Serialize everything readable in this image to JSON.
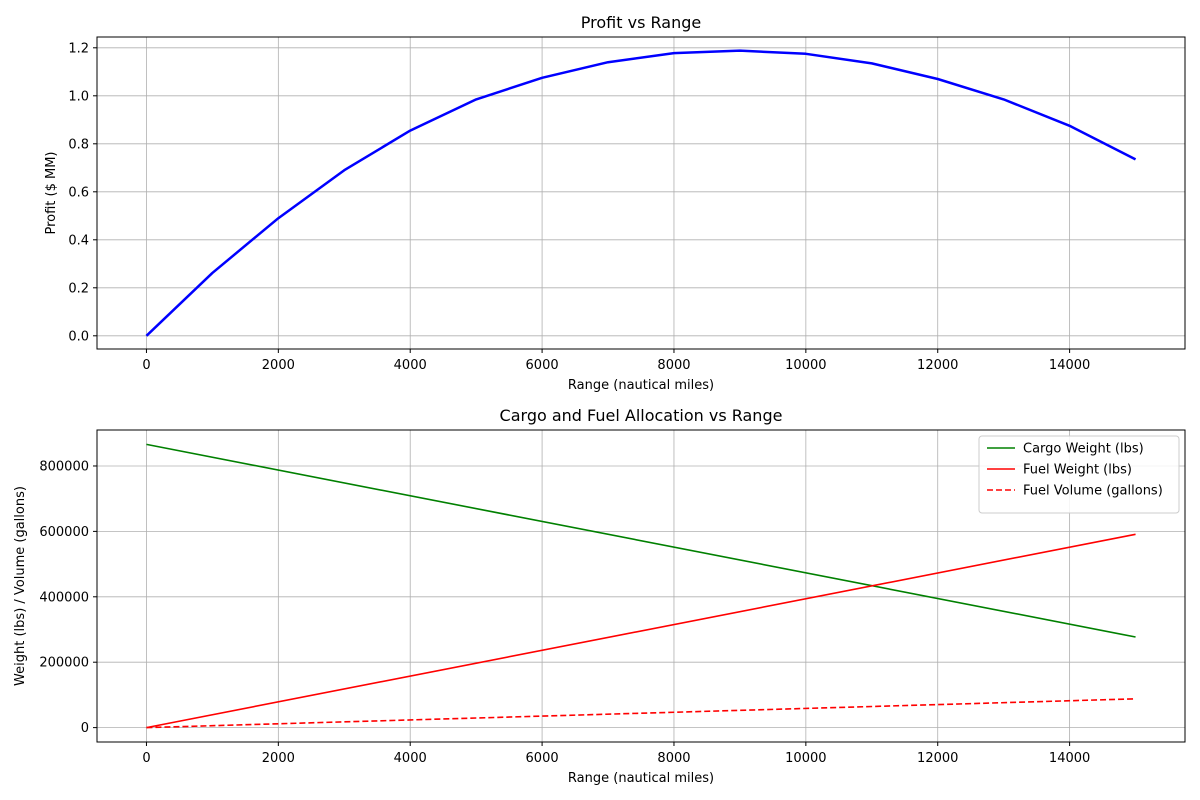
{
  "chart_data": [
    {
      "type": "line",
      "title": "Profit vs Range",
      "xlabel": "Range (nautical miles)",
      "ylabel": "Profit ($ MM)",
      "xlim": [
        -750,
        15750
      ],
      "ylim": [
        -0.055,
        1.245
      ],
      "xticks": [
        0,
        2000,
        4000,
        6000,
        8000,
        10000,
        12000,
        14000
      ],
      "yticks": [
        0.0,
        0.2,
        0.4,
        0.6,
        0.8,
        1.0,
        1.2
      ],
      "ytick_decimals": 1,
      "grid": true,
      "legend": null,
      "x": [
        0,
        1000,
        2000,
        3000,
        4000,
        5000,
        6000,
        7000,
        8000,
        9000,
        10000,
        11000,
        12000,
        13000,
        14000,
        15000
      ],
      "series": [
        {
          "values": [
            0.0,
            0.262,
            0.49,
            0.69,
            0.855,
            0.985,
            1.075,
            1.14,
            1.178,
            1.188,
            1.175,
            1.135,
            1.07,
            0.985,
            0.875,
            0.735
          ],
          "color": "#0000ff",
          "style": "solid",
          "width": 2.5
        }
      ]
    },
    {
      "type": "line",
      "title": "Cargo and Fuel Allocation vs Range",
      "xlabel": "Range (nautical miles)",
      "ylabel": "Weight (lbs) / Volume (gallons)",
      "xlim": [
        -750,
        15750
      ],
      "ylim": [
        -44000,
        910000
      ],
      "xticks": [
        0,
        2000,
        4000,
        6000,
        8000,
        10000,
        12000,
        14000
      ],
      "yticks": [
        0,
        200000,
        400000,
        600000,
        800000
      ],
      "ytick_decimals": 0,
      "grid": true,
      "legend": "top-right",
      "x": [
        0,
        15000
      ],
      "series": [
        {
          "name": "Cargo Weight (lbs)",
          "values": [
            866000,
            277000
          ],
          "color": "#008000",
          "style": "solid",
          "width": 1.6
        },
        {
          "name": "Fuel Weight (lbs)",
          "values": [
            0,
            591000
          ],
          "color": "#ff0000",
          "style": "solid",
          "width": 1.6
        },
        {
          "name": "Fuel Volume (gallons)",
          "values": [
            0,
            88000
          ],
          "color": "#ff0000",
          "style": "dashed",
          "width": 1.6
        }
      ]
    }
  ]
}
